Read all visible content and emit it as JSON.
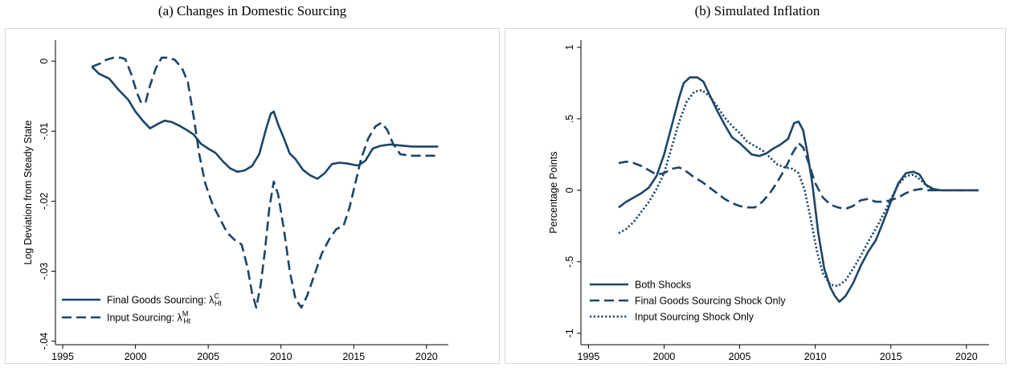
{
  "colors": {
    "series": "#1b4569",
    "axis": "#000000",
    "frame": "#d9d9d9"
  },
  "chart_data": [
    {
      "type": "line",
      "caption": "(a) Changes in Domestic Sourcing",
      "ylabel": "Log Deviation from Steady State",
      "xlabel": "",
      "xlim": [
        1994.5,
        2021.5
      ],
      "ylim": [
        -0.0405,
        0.003
      ],
      "xticks": [
        1995,
        2000,
        2005,
        2010,
        2015,
        2020
      ],
      "yticks": [
        0,
        -0.01,
        -0.02,
        -0.03,
        -0.04
      ],
      "xtick_labels": [
        "1995",
        "2000",
        "2005",
        "2010",
        "2015",
        "2020"
      ],
      "ytick_labels": [
        "0",
        "-.01",
        "-.02",
        "-.03",
        "-.04"
      ],
      "grid": false,
      "legend_position": "bottom-left",
      "series": [
        {
          "name": "Final Goods Sourcing: λ",
          "name_sup": "C",
          "name_sub": "Ht",
          "style": "solid",
          "points": [
            [
              1997,
              -0.0008
            ],
            [
              1997.5,
              -0.0018
            ],
            [
              1998.2,
              -0.0025
            ],
            [
              1998.8,
              -0.004
            ],
            [
              1999.5,
              -0.0055
            ],
            [
              2000,
              -0.0072
            ],
            [
              2000.5,
              -0.0085
            ],
            [
              2001,
              -0.0096
            ],
            [
              2001.5,
              -0.009
            ],
            [
              2002,
              -0.0085
            ],
            [
              2002.5,
              -0.0087
            ],
            [
              2003,
              -0.0092
            ],
            [
              2003.5,
              -0.0098
            ],
            [
              2004,
              -0.0105
            ],
            [
              2004.5,
              -0.0118
            ],
            [
              2005,
              -0.0125
            ],
            [
              2005.5,
              -0.0131
            ],
            [
              2006,
              -0.0143
            ],
            [
              2006.5,
              -0.0153
            ],
            [
              2007,
              -0.0158
            ],
            [
              2007.5,
              -0.0156
            ],
            [
              2008,
              -0.015
            ],
            [
              2008.5,
              -0.0133
            ],
            [
              2009,
              -0.0095
            ],
            [
              2009.3,
              -0.0075
            ],
            [
              2009.5,
              -0.0072
            ],
            [
              2009.8,
              -0.009
            ],
            [
              2010.2,
              -0.011
            ],
            [
              2010.6,
              -0.0132
            ],
            [
              2011,
              -0.014
            ],
            [
              2011.5,
              -0.0155
            ],
            [
              2012,
              -0.0163
            ],
            [
              2012.5,
              -0.0168
            ],
            [
              2013,
              -0.016
            ],
            [
              2013.5,
              -0.0147
            ],
            [
              2014,
              -0.0145
            ],
            [
              2014.5,
              -0.0146
            ],
            [
              2015,
              -0.0148
            ],
            [
              2015.3,
              -0.0149
            ],
            [
              2015.8,
              -0.0142
            ],
            [
              2016.3,
              -0.0125
            ],
            [
              2016.8,
              -0.0121
            ],
            [
              2017.5,
              -0.0119
            ],
            [
              2018,
              -0.012
            ],
            [
              2019,
              -0.0122
            ],
            [
              2020,
              -0.0122
            ],
            [
              2020.8,
              -0.0122
            ]
          ]
        },
        {
          "name": "Input Sourcing: λ",
          "name_sup": "M",
          "name_sub": "Ht",
          "style": "dashed",
          "points": [
            [
              1997,
              -0.0008
            ],
            [
              1997.6,
              -0.0003
            ],
            [
              1998,
              0.0002
            ],
            [
              1998.5,
              0.0005
            ],
            [
              1999,
              0.0005
            ],
            [
              1999.3,
              0.0003
            ],
            [
              1999.7,
              -0.0018
            ],
            [
              2000.1,
              -0.0045
            ],
            [
              2000.4,
              -0.006
            ],
            [
              2000.7,
              -0.0058
            ],
            [
              2001,
              -0.0035
            ],
            [
              2001.4,
              -0.001
            ],
            [
              2001.8,
              0.0005
            ],
            [
              2002.3,
              0.0005
            ],
            [
              2002.7,
              0.0002
            ],
            [
              2003.2,
              -0.001
            ],
            [
              2003.6,
              -0.003
            ],
            [
              2004,
              -0.008
            ],
            [
              2004.4,
              -0.0135
            ],
            [
              2004.8,
              -0.0175
            ],
            [
              2005.3,
              -0.0205
            ],
            [
              2005.8,
              -0.0225
            ],
            [
              2006.3,
              -0.0245
            ],
            [
              2006.8,
              -0.0255
            ],
            [
              2007.3,
              -0.0262
            ],
            [
              2007.7,
              -0.0295
            ],
            [
              2008,
              -0.033
            ],
            [
              2008.3,
              -0.0352
            ],
            [
              2008.6,
              -0.032
            ],
            [
              2008.9,
              -0.027
            ],
            [
              2009.2,
              -0.021
            ],
            [
              2009.5,
              -0.0172
            ],
            [
              2009.8,
              -0.019
            ],
            [
              2010.2,
              -0.024
            ],
            [
              2010.6,
              -0.03
            ],
            [
              2011,
              -0.034
            ],
            [
              2011.4,
              -0.0352
            ],
            [
              2011.8,
              -0.0335
            ],
            [
              2012.3,
              -0.0305
            ],
            [
              2012.8,
              -0.0275
            ],
            [
              2013.3,
              -0.0255
            ],
            [
              2013.8,
              -0.024
            ],
            [
              2014.3,
              -0.0235
            ],
            [
              2014.7,
              -0.021
            ],
            [
              2015.1,
              -0.0175
            ],
            [
              2015.5,
              -0.014
            ],
            [
              2016,
              -0.011
            ],
            [
              2016.5,
              -0.0093
            ],
            [
              2016.9,
              -0.0088
            ],
            [
              2017.3,
              -0.0098
            ],
            [
              2017.7,
              -0.0118
            ],
            [
              2018.2,
              -0.0133
            ],
            [
              2019,
              -0.0135
            ],
            [
              2020,
              -0.0135
            ],
            [
              2020.8,
              -0.0135
            ]
          ]
        }
      ]
    },
    {
      "type": "line",
      "caption": "(b) Simulated Inflation",
      "ylabel": "Percentage Points",
      "xlabel": "",
      "xlim": [
        1994.5,
        2021.5
      ],
      "ylim": [
        -1.08,
        1.05
      ],
      "xticks": [
        1995,
        2000,
        2005,
        2010,
        2015,
        2020
      ],
      "yticks": [
        1,
        0.5,
        0,
        -0.5,
        -1
      ],
      "xtick_labels": [
        "1995",
        "2000",
        "2005",
        "2010",
        "2015",
        "2020"
      ],
      "ytick_labels": [
        "1",
        ".5",
        "0",
        "-.5",
        "-1"
      ],
      "grid": false,
      "legend_position": "bottom-left",
      "series": [
        {
          "name": "Both Shocks",
          "style": "solid",
          "points": [
            [
              1997,
              -0.12
            ],
            [
              1997.5,
              -0.08
            ],
            [
              1998,
              -0.05
            ],
            [
              1998.5,
              -0.02
            ],
            [
              1999,
              0.02
            ],
            [
              1999.5,
              0.1
            ],
            [
              2000,
              0.25
            ],
            [
              2000.5,
              0.45
            ],
            [
              2001,
              0.65
            ],
            [
              2001.3,
              0.75
            ],
            [
              2001.7,
              0.79
            ],
            [
              2002.2,
              0.79
            ],
            [
              2002.6,
              0.76
            ],
            [
              2003,
              0.67
            ],
            [
              2003.5,
              0.56
            ],
            [
              2004,
              0.46
            ],
            [
              2004.5,
              0.37
            ],
            [
              2005,
              0.33
            ],
            [
              2005.4,
              0.29
            ],
            [
              2005.8,
              0.25
            ],
            [
              2006.3,
              0.24
            ],
            [
              2006.8,
              0.26
            ],
            [
              2007.2,
              0.29
            ],
            [
              2007.7,
              0.32
            ],
            [
              2008.2,
              0.36
            ],
            [
              2008.6,
              0.47
            ],
            [
              2008.9,
              0.48
            ],
            [
              2009.2,
              0.42
            ],
            [
              2009.5,
              0.25
            ],
            [
              2009.8,
              0.05
            ],
            [
              2010.2,
              -0.3
            ],
            [
              2010.6,
              -0.55
            ],
            [
              2011,
              -0.68
            ],
            [
              2011.3,
              -0.74
            ],
            [
              2011.6,
              -0.78
            ],
            [
              2012,
              -0.74
            ],
            [
              2012.5,
              -0.65
            ],
            [
              2013,
              -0.53
            ],
            [
              2013.5,
              -0.43
            ],
            [
              2014,
              -0.35
            ],
            [
              2014.5,
              -0.22
            ],
            [
              2015,
              -0.08
            ],
            [
              2015.5,
              0.05
            ],
            [
              2016,
              0.12
            ],
            [
              2016.5,
              0.13
            ],
            [
              2016.9,
              0.11
            ],
            [
              2017.3,
              0.04
            ],
            [
              2017.8,
              0.01
            ],
            [
              2018.3,
              0.0
            ],
            [
              2019,
              0.0
            ],
            [
              2020,
              0.0
            ],
            [
              2020.8,
              0.0
            ]
          ]
        },
        {
          "name": "Final Goods Sourcing Shock Only",
          "style": "dashed",
          "points": [
            [
              1997,
              0.19
            ],
            [
              1997.5,
              0.2
            ],
            [
              1998,
              0.19
            ],
            [
              1998.5,
              0.17
            ],
            [
              1999,
              0.14
            ],
            [
              1999.5,
              0.11
            ],
            [
              2000,
              0.12
            ],
            [
              2000.5,
              0.15
            ],
            [
              2001,
              0.16
            ],
            [
              2001.5,
              0.13
            ],
            [
              2002,
              0.09
            ],
            [
              2002.5,
              0.06
            ],
            [
              2003,
              0.02
            ],
            [
              2003.5,
              -0.02
            ],
            [
              2004,
              -0.06
            ],
            [
              2004.5,
              -0.09
            ],
            [
              2005,
              -0.11
            ],
            [
              2005.5,
              -0.12
            ],
            [
              2006,
              -0.12
            ],
            [
              2006.5,
              -0.08
            ],
            [
              2007,
              -0.02
            ],
            [
              2007.5,
              0.06
            ],
            [
              2008,
              0.15
            ],
            [
              2008.5,
              0.26
            ],
            [
              2008.9,
              0.33
            ],
            [
              2009.2,
              0.3
            ],
            [
              2009.6,
              0.18
            ],
            [
              2010,
              0.05
            ],
            [
              2010.5,
              -0.05
            ],
            [
              2011,
              -0.1
            ],
            [
              2011.5,
              -0.12
            ],
            [
              2012,
              -0.13
            ],
            [
              2012.5,
              -0.11
            ],
            [
              2013,
              -0.07
            ],
            [
              2013.5,
              -0.06
            ],
            [
              2014,
              -0.08
            ],
            [
              2014.5,
              -0.08
            ],
            [
              2015,
              -0.07
            ],
            [
              2015.5,
              -0.05
            ],
            [
              2016,
              -0.02
            ],
            [
              2016.5,
              0.0
            ],
            [
              2017,
              0.01
            ],
            [
              2017.5,
              0.0
            ],
            [
              2018,
              0.0
            ],
            [
              2019,
              0.0
            ],
            [
              2020,
              0.0
            ],
            [
              2020.8,
              0.0
            ]
          ]
        },
        {
          "name": "Input Sourcing Shock Only",
          "style": "dotted",
          "points": [
            [
              1997,
              -0.3
            ],
            [
              1997.5,
              -0.27
            ],
            [
              1998,
              -0.22
            ],
            [
              1998.5,
              -0.15
            ],
            [
              1999,
              -0.08
            ],
            [
              1999.5,
              0.01
            ],
            [
              2000,
              0.12
            ],
            [
              2000.5,
              0.3
            ],
            [
              2001,
              0.48
            ],
            [
              2001.5,
              0.62
            ],
            [
              2002,
              0.69
            ],
            [
              2002.5,
              0.7
            ],
            [
              2003,
              0.66
            ],
            [
              2003.5,
              0.59
            ],
            [
              2004,
              0.51
            ],
            [
              2004.5,
              0.45
            ],
            [
              2005,
              0.4
            ],
            [
              2005.5,
              0.34
            ],
            [
              2006,
              0.31
            ],
            [
              2006.5,
              0.28
            ],
            [
              2007,
              0.23
            ],
            [
              2007.5,
              0.18
            ],
            [
              2008,
              0.16
            ],
            [
              2008.5,
              0.15
            ],
            [
              2008.9,
              0.12
            ],
            [
              2009.3,
              0.0
            ],
            [
              2009.7,
              -0.2
            ],
            [
              2010.1,
              -0.42
            ],
            [
              2010.5,
              -0.58
            ],
            [
              2011,
              -0.66
            ],
            [
              2011.5,
              -0.67
            ],
            [
              2012,
              -0.63
            ],
            [
              2012.5,
              -0.55
            ],
            [
              2013,
              -0.46
            ],
            [
              2013.5,
              -0.36
            ],
            [
              2014,
              -0.27
            ],
            [
              2014.5,
              -0.17
            ],
            [
              2015,
              -0.06
            ],
            [
              2015.5,
              0.04
            ],
            [
              2016,
              0.1
            ],
            [
              2016.5,
              0.11
            ],
            [
              2017,
              0.07
            ],
            [
              2017.5,
              0.02
            ],
            [
              2018,
              0.0
            ],
            [
              2019,
              0.0
            ],
            [
              2020,
              0.0
            ],
            [
              2020.8,
              0.0
            ]
          ]
        }
      ]
    }
  ]
}
